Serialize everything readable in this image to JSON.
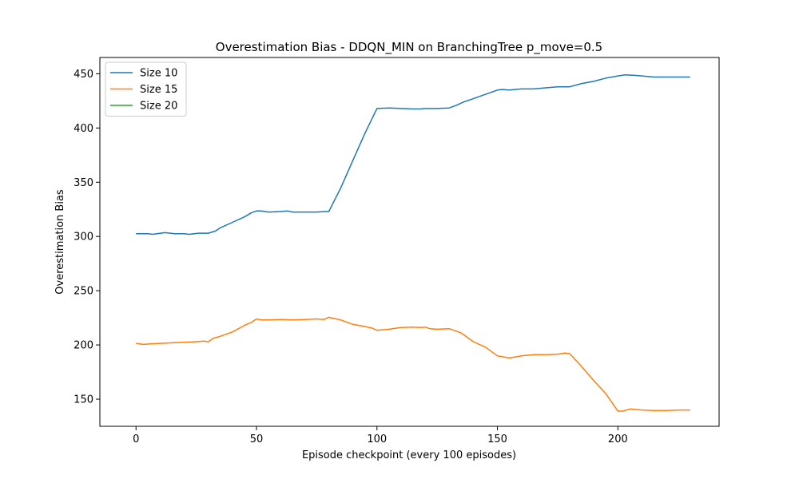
{
  "chart_data": {
    "type": "line",
    "title": "Overestimation Bias - DDQN_MIN on BranchingTree p_move=0.5",
    "xlabel": "Episode checkpoint (every 100 episodes)",
    "ylabel": "Overestimation Bias",
    "xlim": [
      -15,
      242
    ],
    "ylim": [
      125,
      465
    ],
    "xticks": [
      0,
      50,
      100,
      150,
      200
    ],
    "yticks": [
      150,
      200,
      250,
      300,
      350,
      400,
      450
    ],
    "grid": false,
    "legend": "upper-left",
    "series": [
      {
        "name": "Size 10",
        "color": "#1f77b4",
        "points": [
          [
            0,
            302.5
          ],
          [
            5,
            302.5
          ],
          [
            7,
            302
          ],
          [
            12,
            303.5
          ],
          [
            16,
            302.5
          ],
          [
            20,
            302.5
          ],
          [
            22,
            302
          ],
          [
            26,
            303
          ],
          [
            30,
            303
          ],
          [
            33,
            305
          ],
          [
            35,
            308
          ],
          [
            40,
            313
          ],
          [
            45,
            318
          ],
          [
            48,
            322
          ],
          [
            50,
            323.5
          ],
          [
            52,
            323.5
          ],
          [
            55,
            322.5
          ],
          [
            60,
            323
          ],
          [
            63,
            323.5
          ],
          [
            65,
            322.5
          ],
          [
            70,
            322.5
          ],
          [
            75,
            322.5
          ],
          [
            78,
            323
          ],
          [
            80,
            323
          ],
          [
            85,
            345
          ],
          [
            90,
            370
          ],
          [
            95,
            395
          ],
          [
            100,
            418
          ],
          [
            105,
            418.5
          ],
          [
            110,
            418
          ],
          [
            115,
            417.5
          ],
          [
            118,
            417.5
          ],
          [
            120,
            418
          ],
          [
            125,
            418
          ],
          [
            130,
            418.5
          ],
          [
            133,
            421
          ],
          [
            136,
            424
          ],
          [
            140,
            427
          ],
          [
            145,
            431
          ],
          [
            150,
            435
          ],
          [
            152,
            435.5
          ],
          [
            155,
            435
          ],
          [
            160,
            436
          ],
          [
            165,
            436
          ],
          [
            170,
            437
          ],
          [
            175,
            438
          ],
          [
            180,
            438
          ],
          [
            185,
            441
          ],
          [
            190,
            443
          ],
          [
            195,
            446
          ],
          [
            200,
            448
          ],
          [
            203,
            449
          ],
          [
            207,
            448.5
          ],
          [
            210,
            448
          ],
          [
            215,
            447
          ],
          [
            220,
            447
          ],
          [
            225,
            447
          ],
          [
            230,
            447
          ]
        ]
      },
      {
        "name": "Size 15",
        "color": "#ff7f0e",
        "points": [
          [
            0,
            201.5
          ],
          [
            3,
            200.5
          ],
          [
            6,
            201
          ],
          [
            10,
            201.5
          ],
          [
            15,
            202
          ],
          [
            20,
            202.5
          ],
          [
            25,
            203
          ],
          [
            28,
            203.5
          ],
          [
            30,
            203
          ],
          [
            32,
            206
          ],
          [
            35,
            208
          ],
          [
            40,
            212
          ],
          [
            45,
            218
          ],
          [
            48,
            221
          ],
          [
            50,
            224
          ],
          [
            52,
            223
          ],
          [
            55,
            223
          ],
          [
            60,
            223.5
          ],
          [
            65,
            223
          ],
          [
            70,
            223.5
          ],
          [
            75,
            224
          ],
          [
            78,
            223.5
          ],
          [
            80,
            225.5
          ],
          [
            85,
            223
          ],
          [
            90,
            219
          ],
          [
            95,
            217
          ],
          [
            98,
            215.5
          ],
          [
            100,
            213.5
          ],
          [
            105,
            214.5
          ],
          [
            110,
            216
          ],
          [
            115,
            216.5
          ],
          [
            118,
            216
          ],
          [
            120,
            216.5
          ],
          [
            122,
            215
          ],
          [
            125,
            214.5
          ],
          [
            130,
            215
          ],
          [
            135,
            211
          ],
          [
            140,
            203
          ],
          [
            145,
            198
          ],
          [
            150,
            190
          ],
          [
            155,
            188
          ],
          [
            160,
            190
          ],
          [
            165,
            191
          ],
          [
            170,
            191
          ],
          [
            175,
            191.5
          ],
          [
            178,
            192.5
          ],
          [
            180,
            192
          ],
          [
            185,
            180
          ],
          [
            190,
            167
          ],
          [
            195,
            155
          ],
          [
            200,
            139
          ],
          [
            202,
            139
          ],
          [
            205,
            141
          ],
          [
            210,
            140
          ],
          [
            215,
            139.5
          ],
          [
            220,
            139.5
          ],
          [
            225,
            140
          ],
          [
            230,
            140
          ]
        ]
      },
      {
        "name": "Size 20",
        "color": "#2ca02c",
        "points": []
      }
    ]
  }
}
